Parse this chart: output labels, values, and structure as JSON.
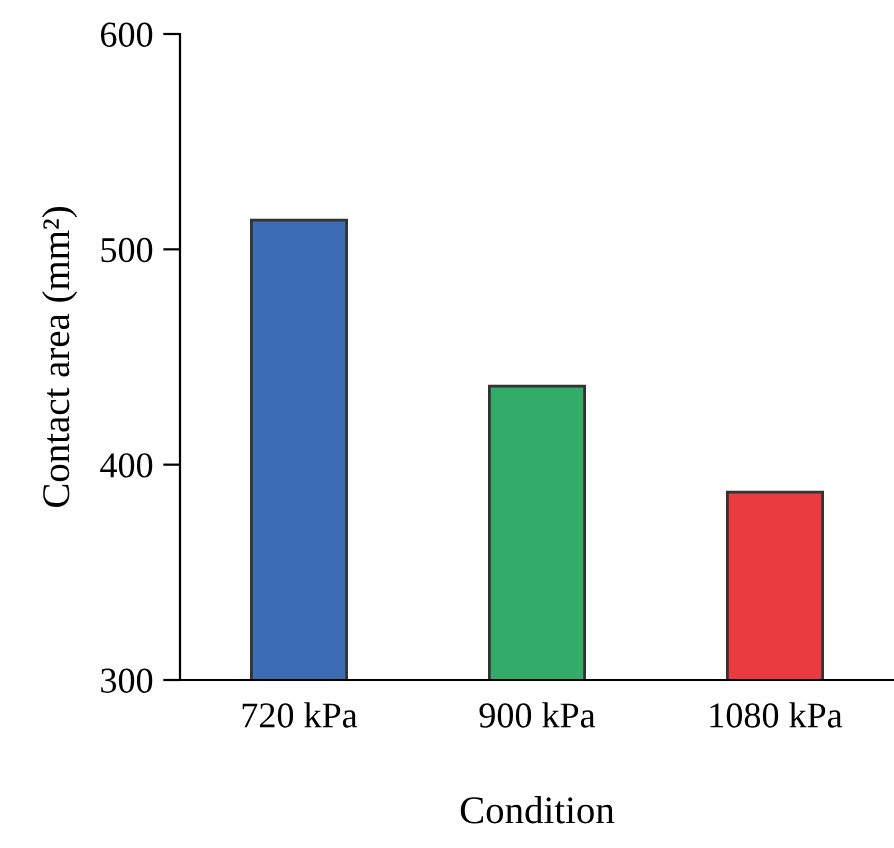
{
  "chart_data": {
    "type": "bar",
    "xlabel": "Condition",
    "ylabel": "Contact area (mm²)",
    "categories": [
      "720 kPa",
      "900 kPa",
      "1080 kPa"
    ],
    "values": [
      513.6,
      436.5,
      387.3
    ],
    "colors": [
      "#3b6cb5",
      "#34ac69",
      "#ea3c40"
    ],
    "ylim": [
      300,
      600
    ],
    "yticks": [
      300,
      400,
      500,
      600
    ],
    "grid": false,
    "legend": false
  }
}
